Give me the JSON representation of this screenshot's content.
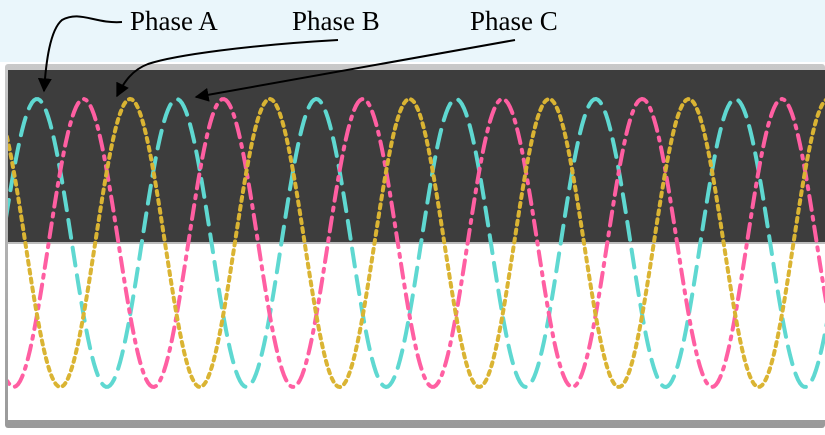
{
  "chart_data": {
    "type": "line",
    "title": "",
    "xlabel": "",
    "ylabel": "",
    "x_range_cycles": [
      0,
      5.85
    ],
    "y_range": [
      -1,
      1
    ],
    "grid": false,
    "legend": "annotations with arrows at top-left",
    "series": [
      {
        "name": "Phase A",
        "phase_deg": 0,
        "amplitude": 1,
        "cycles_shown": 5.85,
        "color": "#5fd8d1",
        "dash": "long-dash"
      },
      {
        "name": "Phase B",
        "phase_deg": -120,
        "amplitude": 1,
        "cycles_shown": 5.85,
        "color": "#ff5fa2",
        "dash": "dash-dot"
      },
      {
        "name": "Phase C",
        "phase_deg": -240,
        "amplitude": 1,
        "cycles_shown": 5.85,
        "color": "#dab433",
        "dash": "dotted"
      }
    ]
  },
  "colors": {
    "header_band": "#eaf6fb",
    "upper_band": "#3d3d3d",
    "lower_band": "#ffffff",
    "frame": "#a8a8a8"
  }
}
